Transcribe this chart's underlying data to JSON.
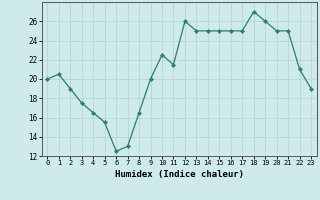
{
  "x": [
    0,
    1,
    2,
    3,
    4,
    5,
    6,
    7,
    8,
    9,
    10,
    11,
    12,
    13,
    14,
    15,
    16,
    17,
    18,
    19,
    20,
    21,
    22,
    23
  ],
  "y": [
    20,
    20.5,
    19,
    17.5,
    16.5,
    15.5,
    12.5,
    13,
    16.5,
    20,
    22.5,
    21.5,
    26,
    25,
    25,
    25,
    25,
    25,
    27,
    26,
    25,
    25,
    21,
    19
  ],
  "line_color": "#2e7d6e",
  "marker": "D",
  "marker_size": 2,
  "bg_color": "#ceeaea",
  "grid_color": "#b8d4d4",
  "xlabel": "Humidex (Indice chaleur)",
  "ylim": [
    12,
    28
  ],
  "xlim": [
    -0.5,
    23.5
  ],
  "yticks": [
    12,
    14,
    16,
    18,
    20,
    22,
    24,
    26
  ],
  "xticks": [
    0,
    1,
    2,
    3,
    4,
    5,
    6,
    7,
    8,
    9,
    10,
    11,
    12,
    13,
    14,
    15,
    16,
    17,
    18,
    19,
    20,
    21,
    22,
    23
  ]
}
